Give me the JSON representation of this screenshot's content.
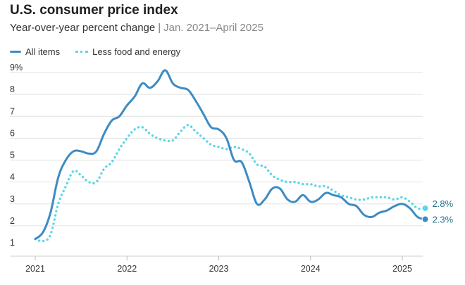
{
  "chart_data": {
    "type": "line",
    "title": "U.S. consumer price index",
    "subtitle": "Year-over-year percent change",
    "subtitle_range": "Jan. 2021–April 2025",
    "separator": "|",
    "xlabel": "",
    "ylabel": "",
    "y_unit_label": "%",
    "ylim": [
      1,
      9
    ],
    "y_ticks": [
      "1",
      "2",
      "3",
      "4",
      "5",
      "6",
      "7",
      "8",
      "9"
    ],
    "x_ticks": [
      "2021",
      "2022",
      "2023",
      "2024",
      "2025"
    ],
    "grid": true,
    "legend_position": "top-left",
    "end_labels": [
      "2.8%",
      "2.3%"
    ],
    "series": [
      {
        "name": "All items",
        "style": "solid",
        "color": "#3d8bc4",
        "end_label": "2.3%",
        "x": [
          "2021-01",
          "2021-02",
          "2021-03",
          "2021-04",
          "2021-05",
          "2021-06",
          "2021-07",
          "2021-08",
          "2021-09",
          "2021-10",
          "2021-11",
          "2021-12",
          "2022-01",
          "2022-02",
          "2022-03",
          "2022-04",
          "2022-05",
          "2022-06",
          "2022-07",
          "2022-08",
          "2022-09",
          "2022-10",
          "2022-11",
          "2022-12",
          "2023-01",
          "2023-02",
          "2023-03",
          "2023-04",
          "2023-05",
          "2023-06",
          "2023-07",
          "2023-08",
          "2023-09",
          "2023-10",
          "2023-11",
          "2023-12",
          "2024-01",
          "2024-02",
          "2024-03",
          "2024-04",
          "2024-05",
          "2024-06",
          "2024-07",
          "2024-08",
          "2024-09",
          "2024-10",
          "2024-11",
          "2024-12",
          "2025-01",
          "2025-02",
          "2025-03",
          "2025-04"
        ],
        "values": [
          1.4,
          1.7,
          2.6,
          4.2,
          5.0,
          5.4,
          5.4,
          5.3,
          5.4,
          6.2,
          6.8,
          7.0,
          7.5,
          7.9,
          8.5,
          8.3,
          8.6,
          9.1,
          8.5,
          8.3,
          8.2,
          7.7,
          7.1,
          6.5,
          6.4,
          6.0,
          5.0,
          4.9,
          4.0,
          3.0,
          3.2,
          3.7,
          3.7,
          3.2,
          3.1,
          3.4,
          3.1,
          3.2,
          3.5,
          3.4,
          3.3,
          3.0,
          2.9,
          2.5,
          2.4,
          2.6,
          2.7,
          2.9,
          3.0,
          2.8,
          2.4,
          2.3
        ]
      },
      {
        "name": "Less food and energy",
        "style": "dotted",
        "color": "#5fd5e6",
        "end_label": "2.8%",
        "x": [
          "2021-01",
          "2021-02",
          "2021-03",
          "2021-04",
          "2021-05",
          "2021-06",
          "2021-07",
          "2021-08",
          "2021-09",
          "2021-10",
          "2021-11",
          "2021-12",
          "2022-01",
          "2022-02",
          "2022-03",
          "2022-04",
          "2022-05",
          "2022-06",
          "2022-07",
          "2022-08",
          "2022-09",
          "2022-10",
          "2022-11",
          "2022-12",
          "2023-01",
          "2023-02",
          "2023-03",
          "2023-04",
          "2023-05",
          "2023-06",
          "2023-07",
          "2023-08",
          "2023-09",
          "2023-10",
          "2023-11",
          "2023-12",
          "2024-01",
          "2024-02",
          "2024-03",
          "2024-04",
          "2024-05",
          "2024-06",
          "2024-07",
          "2024-08",
          "2024-09",
          "2024-10",
          "2024-11",
          "2024-12",
          "2025-01",
          "2025-02",
          "2025-03",
          "2025-04"
        ],
        "values": [
          1.4,
          1.3,
          1.6,
          3.0,
          3.8,
          4.5,
          4.3,
          4.0,
          4.0,
          4.6,
          4.9,
          5.5,
          6.0,
          6.4,
          6.5,
          6.2,
          6.0,
          5.9,
          5.9,
          6.3,
          6.6,
          6.3,
          6.0,
          5.7,
          5.6,
          5.5,
          5.6,
          5.5,
          5.3,
          4.8,
          4.7,
          4.3,
          4.1,
          4.0,
          4.0,
          3.9,
          3.9,
          3.8,
          3.8,
          3.6,
          3.4,
          3.3,
          3.2,
          3.2,
          3.3,
          3.3,
          3.3,
          3.2,
          3.3,
          3.1,
          2.8,
          2.8
        ]
      }
    ]
  }
}
